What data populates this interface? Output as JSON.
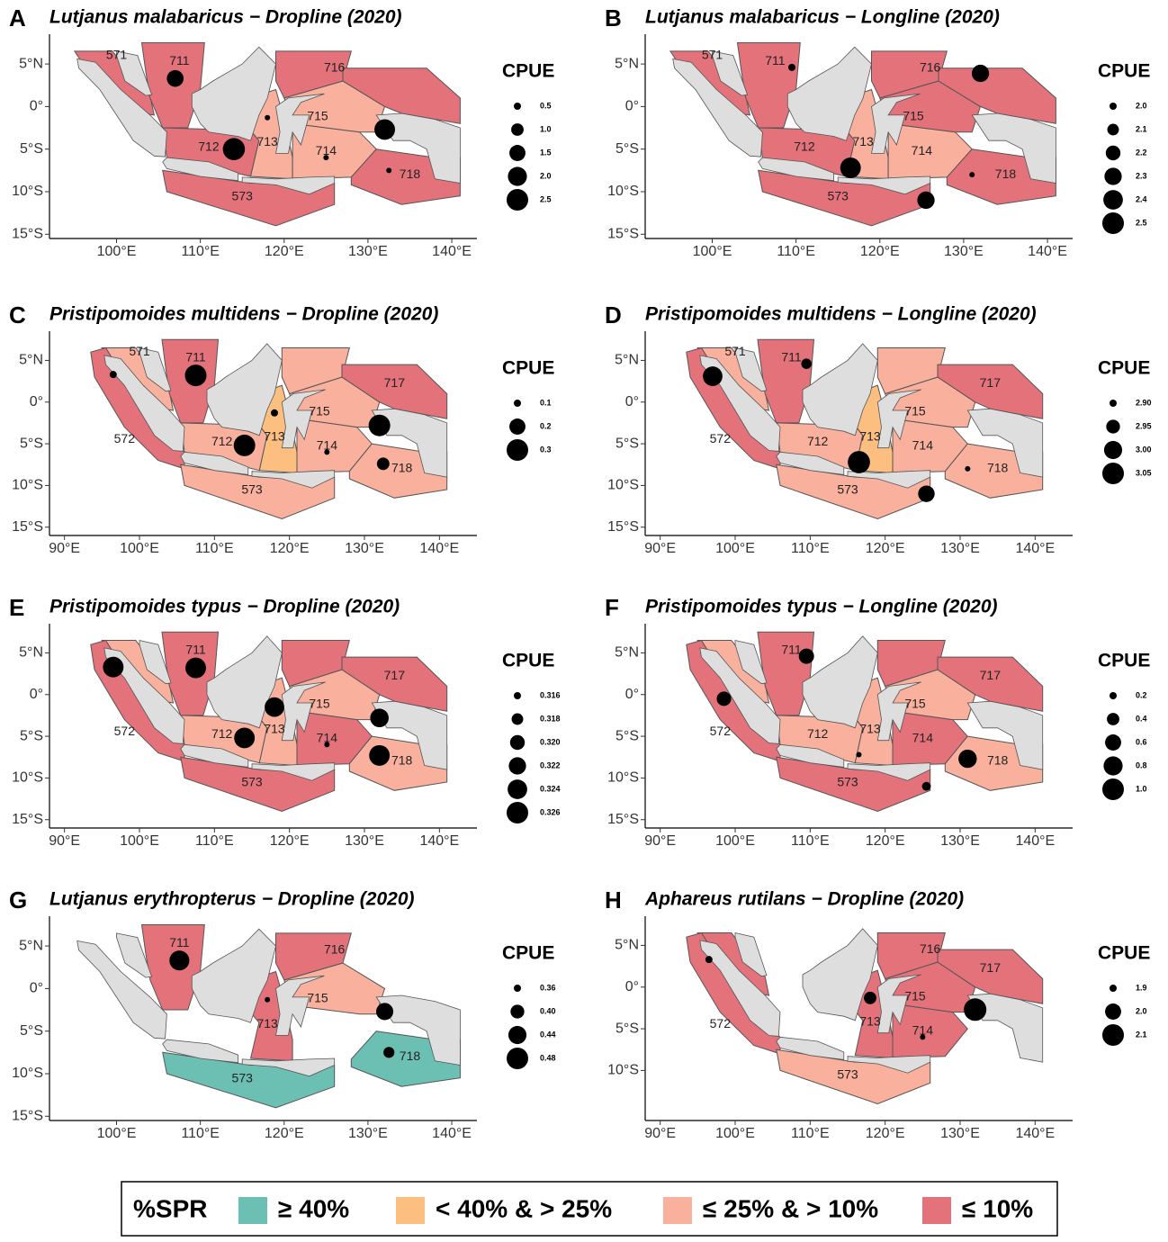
{
  "panels": [
    {
      "letter": "A",
      "title": "Lutjanus malabaricus − Dropline (2020)",
      "xlim": [
        92,
        143
      ],
      "ylim": [
        -15.5,
        8.5
      ],
      "xticks": [
        {
          "value": 100,
          "label": "100°E"
        },
        {
          "value": 110,
          "label": "110°E"
        },
        {
          "value": 120,
          "label": "120°E"
        },
        {
          "value": 130,
          "label": "130°E"
        },
        {
          "value": 140,
          "label": "140°E"
        }
      ],
      "yticks": [
        {
          "value": 5,
          "label": "5°N"
        },
        {
          "value": 0,
          "label": "0°"
        },
        {
          "value": -5,
          "label": "5°S"
        },
        {
          "value": -10,
          "label": "10°S"
        },
        {
          "value": -15,
          "label": "15°S"
        }
      ],
      "regions": [
        {
          "label": "571",
          "spr": 3
        },
        {
          "label": null,
          "spr": null
        },
        {
          "label": "573",
          "spr": 3
        },
        {
          "label": "711",
          "spr": 3
        },
        {
          "label": "712",
          "spr": 3
        },
        {
          "label": "713",
          "spr": 2
        },
        {
          "label": "714",
          "spr": 2
        },
        {
          "label": "715",
          "spr": 2
        },
        {
          "label": "716",
          "spr": 3
        },
        {
          "label": null,
          "spr": 3
        },
        {
          "label": "718",
          "spr": 3
        }
      ],
      "points": {
        "lon": [
          107,
          114,
          132,
          118,
          125,
          132.5
        ],
        "lat": [
          3.3,
          -5,
          -2.7,
          -1.3,
          -6,
          -7.5
        ],
        "cpue": [
          1.6,
          2.6,
          2.3,
          0.3,
          0.3,
          0.3
        ]
      },
      "cpue_title": "CPUE",
      "cpue_legend": [
        0.5,
        {
          "value": 1,
          "label": "1.0"
        },
        1.5,
        {
          "value": 2,
          "label": "2.0"
        },
        2.5
      ]
    },
    {
      "letter": "B",
      "title": "Lutjanus malabaricus − Longline (2020)",
      "xlim": [
        92,
        143
      ],
      "ylim": [
        -15.5,
        8.5
      ],
      "xticks": [
        {
          "value": 100,
          "label": "100°E"
        },
        {
          "value": 110,
          "label": "110°E"
        },
        {
          "value": 120,
          "label": "120°E"
        },
        {
          "value": 130,
          "label": "130°E"
        },
        {
          "value": 140,
          "label": "140°E"
        }
      ],
      "yticks": [
        {
          "value": 5,
          "label": "5°N"
        },
        {
          "value": 0,
          "label": "0°"
        },
        {
          "value": -5,
          "label": "5°S"
        },
        {
          "value": -10,
          "label": "10°S"
        },
        {
          "value": -15,
          "label": "15°S"
        }
      ],
      "regions": [
        {
          "label": "571",
          "spr": 3
        },
        {
          "label": null,
          "spr": null
        },
        {
          "label": "573",
          "spr": 3
        },
        {
          "label": "711",
          "spr": 3
        },
        {
          "label": "712",
          "spr": 3
        },
        {
          "label": "713",
          "spr": 2
        },
        {
          "label": "714",
          "spr": 2
        },
        {
          "label": "715",
          "spr": 3
        },
        {
          "label": "716",
          "spr": 3
        },
        {
          "label": null,
          "spr": 3
        },
        {
          "label": "718",
          "spr": 3
        }
      ],
      "points": {
        "lon": [
          109.5,
          116.5,
          132,
          125.5,
          131
        ],
        "lat": [
          4.6,
          -7.2,
          3.9,
          -11,
          -8
        ],
        "cpue": [
          2.0,
          2.45,
          2.3,
          2.3,
          1.95
        ]
      },
      "cpue_title": "CPUE",
      "cpue_legend": [
        {
          "value": 2,
          "label": "2.0"
        },
        2.1,
        2.2,
        2.3,
        2.4,
        2.5
      ]
    },
    {
      "letter": "C",
      "title": "Pristipomoides multidens − Dropline (2020)",
      "xlim": [
        88,
        145
      ],
      "ylim": [
        -16,
        8.5
      ],
      "xticks": [
        {
          "value": 90,
          "label": "90°E"
        },
        {
          "value": 100,
          "label": "100°E"
        },
        {
          "value": 110,
          "label": "110°E"
        },
        {
          "value": 120,
          "label": "120°E"
        },
        {
          "value": 130,
          "label": "130°E"
        },
        {
          "value": 140,
          "label": "140°E"
        }
      ],
      "yticks": [
        {
          "value": 5,
          "label": "5°N"
        },
        {
          "value": 0,
          "label": "0°"
        },
        {
          "value": -5,
          "label": "5°S"
        },
        {
          "value": -10,
          "label": "10°S"
        },
        {
          "value": -15,
          "label": "15°S"
        }
      ],
      "regions": [
        {
          "label": "571",
          "spr": 2
        },
        {
          "label": "572",
          "spr": 3
        },
        {
          "label": "573",
          "spr": 2
        },
        {
          "label": "711",
          "spr": 3
        },
        {
          "label": "712",
          "spr": 2
        },
        {
          "label": "713",
          "spr": 1
        },
        {
          "label": "714",
          "spr": 2
        },
        {
          "label": "715",
          "spr": 2
        },
        {
          "label": null,
          "spr": 2
        },
        {
          "label": "717",
          "spr": 3
        },
        {
          "label": "718",
          "spr": 2
        }
      ],
      "points": {
        "lon": [
          96.5,
          107.5,
          114,
          118,
          132,
          132.5,
          125
        ],
        "lat": [
          3.3,
          3.2,
          -5.2,
          -1.3,
          -2.8,
          -7.4,
          -6
        ],
        "cpue": [
          0.1,
          0.3,
          0.3,
          0.1,
          0.3,
          0.15,
          0.05
        ]
      },
      "cpue_title": "CPUE",
      "cpue_legend": [
        0.1,
        0.2,
        0.3
      ]
    },
    {
      "letter": "D",
      "title": "Pristipomoides multidens − Longline (2020)",
      "xlim": [
        88,
        145
      ],
      "ylim": [
        -16,
        8.5
      ],
      "xticks": [
        {
          "value": 90,
          "label": "90°E"
        },
        {
          "value": 100,
          "label": "100°E"
        },
        {
          "value": 110,
          "label": "110°E"
        },
        {
          "value": 120,
          "label": "120°E"
        },
        {
          "value": 130,
          "label": "130°E"
        },
        {
          "value": 140,
          "label": "140°E"
        }
      ],
      "yticks": [
        {
          "value": 5,
          "label": "5°N"
        },
        {
          "value": 0,
          "label": "0°"
        },
        {
          "value": -5,
          "label": "5°S"
        },
        {
          "value": -10,
          "label": "10°S"
        },
        {
          "value": -15,
          "label": "15°S"
        }
      ],
      "regions": [
        {
          "label": "571",
          "spr": 2
        },
        {
          "label": "572",
          "spr": 3
        },
        {
          "label": "573",
          "spr": 2
        },
        {
          "label": "711",
          "spr": 3
        },
        {
          "label": "712",
          "spr": 2
        },
        {
          "label": "713",
          "spr": 1
        },
        {
          "label": "714",
          "spr": 2
        },
        {
          "label": "715",
          "spr": 2
        },
        {
          "label": null,
          "spr": 2
        },
        {
          "label": "717",
          "spr": 3
        },
        {
          "label": "718",
          "spr": 2
        }
      ],
      "points": {
        "lon": [
          97,
          109.5,
          116.5,
          125.5,
          131
        ],
        "lat": [
          3.1,
          4.6,
          -7.2,
          -11,
          -8
        ],
        "cpue": [
          3.02,
          2.92,
          3.06,
          2.98,
          2.85
        ]
      },
      "cpue_title": "CPUE",
      "cpue_legend": [
        {
          "value": 2.9,
          "label": "2.90"
        },
        2.95,
        {
          "value": 3,
          "label": "3.00"
        },
        3.05
      ]
    },
    {
      "letter": "E",
      "title": "Pristipomoides typus − Dropline (2020)",
      "xlim": [
        88,
        145
      ],
      "ylim": [
        -16,
        8.5
      ],
      "xticks": [
        {
          "value": 90,
          "label": "90°E"
        },
        {
          "value": 100,
          "label": "100°E"
        },
        {
          "value": 110,
          "label": "110°E"
        },
        {
          "value": 120,
          "label": "120°E"
        },
        {
          "value": 130,
          "label": "130°E"
        },
        {
          "value": 140,
          "label": "140°E"
        }
      ],
      "yticks": [
        {
          "value": 5,
          "label": "5°N"
        },
        {
          "value": 0,
          "label": "0°"
        },
        {
          "value": -5,
          "label": "5°S"
        },
        {
          "value": -10,
          "label": "10°S"
        },
        {
          "value": -15,
          "label": "15°S"
        }
      ],
      "regions": [
        {
          "label": null,
          "spr": 2
        },
        {
          "label": "572",
          "spr": 3
        },
        {
          "label": "573",
          "spr": 3
        },
        {
          "label": "711",
          "spr": 3
        },
        {
          "label": "712",
          "spr": 2
        },
        {
          "label": "713",
          "spr": 2
        },
        {
          "label": "714",
          "spr": 3
        },
        {
          "label": "715",
          "spr": 2
        },
        {
          "label": null,
          "spr": 3
        },
        {
          "label": "717",
          "spr": 3
        },
        {
          "label": "718",
          "spr": 2
        }
      ],
      "points": {
        "lon": [
          96.5,
          107.5,
          114,
          118,
          132,
          132,
          125
        ],
        "lat": [
          3.3,
          3.2,
          -5.2,
          -1.5,
          -2.8,
          -7.3,
          -6
        ],
        "cpue": [
          0.325,
          0.325,
          0.325,
          0.324,
          0.323,
          0.325,
          0.314
        ]
      },
      "cpue_title": "CPUE",
      "cpue_legend": [
        0.316,
        0.318,
        {
          "value": 0.32,
          "label": "0.320"
        },
        0.322,
        0.324,
        0.326
      ]
    },
    {
      "letter": "F",
      "title": "Pristipomoides typus − Longline (2020)",
      "xlim": [
        88,
        145
      ],
      "ylim": [
        -16,
        8.5
      ],
      "xticks": [
        {
          "value": 90,
          "label": "90°E"
        },
        {
          "value": 100,
          "label": "100°E"
        },
        {
          "value": 110,
          "label": "110°E"
        },
        {
          "value": 120,
          "label": "120°E"
        },
        {
          "value": 130,
          "label": "130°E"
        },
        {
          "value": 140,
          "label": "140°E"
        }
      ],
      "yticks": [
        {
          "value": 5,
          "label": "5°N"
        },
        {
          "value": 0,
          "label": "0°"
        },
        {
          "value": -5,
          "label": "5°S"
        },
        {
          "value": -10,
          "label": "10°S"
        },
        {
          "value": -15,
          "label": "15°S"
        }
      ],
      "regions": [
        {
          "label": null,
          "spr": 2
        },
        {
          "label": "572",
          "spr": 3
        },
        {
          "label": "573",
          "spr": 3
        },
        {
          "label": "711",
          "spr": 3
        },
        {
          "label": "712",
          "spr": 2
        },
        {
          "label": "713",
          "spr": 2
        },
        {
          "label": "714",
          "spr": 3
        },
        {
          "label": "715",
          "spr": 2
        },
        {
          "label": null,
          "spr": 3
        },
        {
          "label": "717",
          "spr": 3
        },
        {
          "label": "718",
          "spr": 2
        }
      ],
      "points": {
        "lon": [
          98.5,
          109.5,
          116.5,
          125.5,
          131
        ],
        "lat": [
          -0.5,
          4.6,
          -7.2,
          -11,
          -7.7
        ],
        "cpue": [
          0.5,
          0.55,
          0.05,
          0.25,
          0.75
        ]
      },
      "cpue_title": "CPUE",
      "cpue_legend": [
        0.2,
        0.4,
        0.6,
        0.8,
        {
          "value": 1,
          "label": "1.0"
        }
      ]
    },
    {
      "letter": "G",
      "title": "Lutjanus erythropterus − Dropline (2020)",
      "xlim": [
        92,
        143
      ],
      "ylim": [
        -15.5,
        8.5
      ],
      "xticks": [
        {
          "value": 100,
          "label": "100°E"
        },
        {
          "value": 110,
          "label": "110°E"
        },
        {
          "value": 120,
          "label": "120°E"
        },
        {
          "value": 130,
          "label": "130°E"
        },
        {
          "value": 140,
          "label": "140°E"
        }
      ],
      "yticks": [
        {
          "value": 5,
          "label": "5°N"
        },
        {
          "value": 0,
          "label": "0°"
        },
        {
          "value": -5,
          "label": "5°S"
        },
        {
          "value": -10,
          "label": "10°S"
        },
        {
          "value": -15,
          "label": "15°S"
        }
      ],
      "regions": [
        {
          "label": null,
          "spr": null
        },
        {
          "label": null,
          "spr": null
        },
        {
          "label": "573",
          "spr": 0
        },
        {
          "label": "711",
          "spr": 3
        },
        {
          "label": null,
          "spr": null
        },
        {
          "label": "713",
          "spr": 3
        },
        {
          "label": null,
          "spr": null
        },
        {
          "label": "715",
          "spr": 2
        },
        {
          "label": "716",
          "spr": 3
        },
        {
          "label": null,
          "spr": null
        },
        {
          "label": "718",
          "spr": 0
        }
      ],
      "points": {
        "lon": [
          107.5,
          118,
          132,
          132.5
        ],
        "lat": [
          3.3,
          -1.3,
          -2.7,
          -7.5
        ],
        "cpue": [
          0.46,
          0.3,
          0.43,
          0.38
        ]
      },
      "cpue_title": "CPUE",
      "cpue_legend": [
        0.36,
        {
          "value": 0.4,
          "label": "0.40"
        },
        0.44,
        0.48
      ]
    },
    {
      "letter": "H",
      "title": "Aphareus rutilans − Dropline (2020)",
      "xlim": [
        88,
        145
      ],
      "ylim": [
        -16,
        8.5
      ],
      "xticks": [
        {
          "value": 90,
          "label": "90°E"
        },
        {
          "value": 100,
          "label": "100°E"
        },
        {
          "value": 110,
          "label": "110°E"
        },
        {
          "value": 120,
          "label": "120°E"
        },
        {
          "value": 130,
          "label": "130°E"
        },
        {
          "value": 140,
          "label": "140°E"
        }
      ],
      "yticks": [
        {
          "value": 5,
          "label": "5°N"
        },
        {
          "value": 0,
          "label": "0°"
        },
        {
          "value": -5,
          "label": "5°S"
        },
        {
          "value": -10,
          "label": "10°S"
        }
      ],
      "regions": [
        {
          "label": null,
          "spr": 3
        },
        {
          "label": "572",
          "spr": 3
        },
        {
          "label": "573",
          "spr": 2
        },
        {
          "label": null,
          "spr": null
        },
        {
          "label": null,
          "spr": null
        },
        {
          "label": "713",
          "spr": 3
        },
        {
          "label": "714",
          "spr": 3
        },
        {
          "label": "715",
          "spr": 3
        },
        {
          "label": "716",
          "spr": 3
        },
        {
          "label": "717",
          "spr": 3
        },
        {
          "label": null,
          "spr": null
        }
      ],
      "points": {
        "lon": [
          96.5,
          118,
          132,
          125
        ],
        "lat": [
          3.3,
          -1.3,
          -2.7,
          -6
        ],
        "cpue": [
          1.9,
          1.95,
          2.12,
          1.8
        ]
      },
      "cpue_title": "CPUE",
      "cpue_legend": [
        1.9,
        {
          "value": 2,
          "label": "2.0"
        },
        2.1
      ]
    }
  ],
  "spr_legend": {
    "title": "%SPR",
    "classes": [
      {
        "label": "≥ 40%",
        "color": "#6cc0b3"
      },
      {
        "label": "< 40% & > 25%",
        "color": "#fdbf80"
      },
      {
        "label": "≤ 25% & > 10%",
        "color": "#f9b09d"
      },
      {
        "label": "≤ 10%",
        "color": "#e3727b"
      }
    ]
  }
}
